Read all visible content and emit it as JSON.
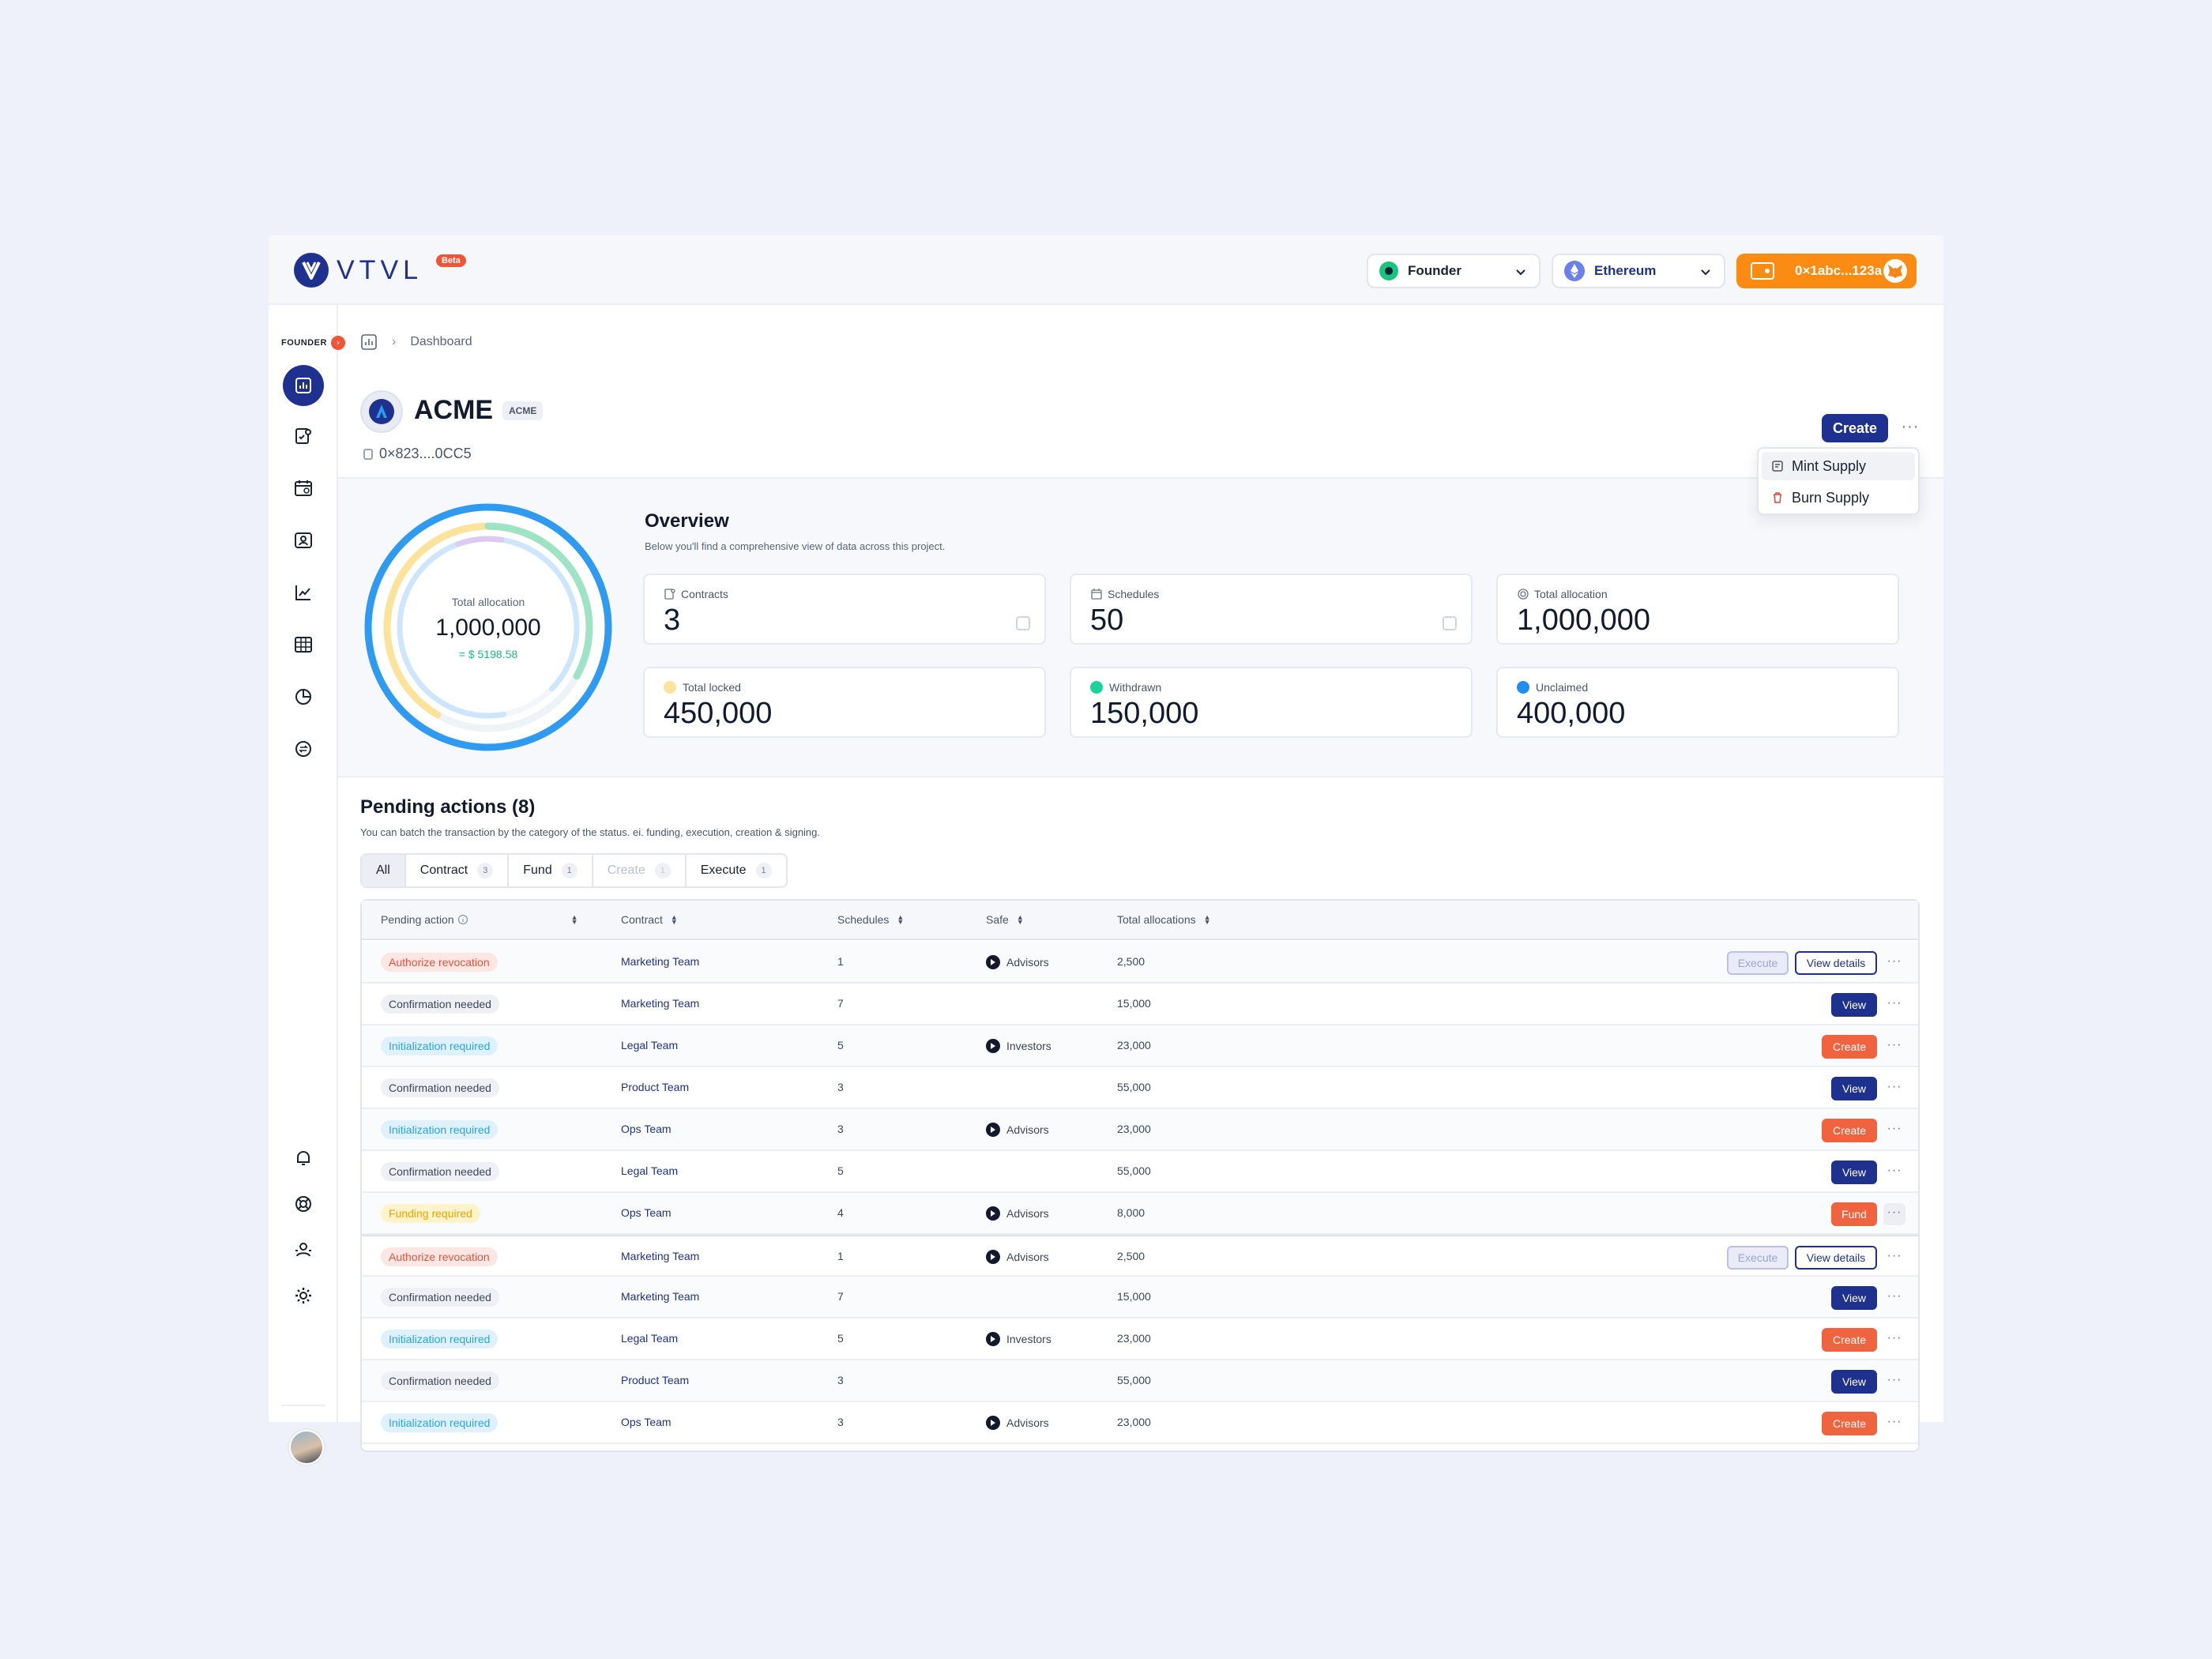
{
  "header": {
    "logo_text": "VTVL",
    "beta_label": "Beta",
    "role": "Founder",
    "network": "Ethereum",
    "wallet": "0×1abc...123a"
  },
  "sidebar": {
    "role_label": "FOUNDER",
    "icons": [
      "dashboard-icon",
      "contracts-icon",
      "schedules-icon",
      "recipients-icon",
      "analytics-icon",
      "table-icon",
      "pie-chart-icon",
      "token-icon"
    ],
    "bottom_icons": [
      "bell-icon",
      "support-icon",
      "team-icon",
      "settings-icon"
    ]
  },
  "breadcrumb": {
    "current": "Dashboard"
  },
  "project": {
    "name": "ACME",
    "tag": "ACME",
    "address": "0×823....0CC5",
    "create_label": "Create",
    "menu": [
      "Mint Supply",
      "Burn Supply"
    ]
  },
  "overview": {
    "title": "Overview",
    "subtitle": "Below you'll find a comprehensive view of data across this project.",
    "donut": {
      "label": "Total allocation",
      "value": "1,000,000",
      "usd": "= $ 5198.58",
      "total": 1000000,
      "locked": 450000,
      "withdrawn": 150000,
      "unclaimed": 400000
    },
    "cards": [
      {
        "label": "Contracts",
        "value": "3"
      },
      {
        "label": "Schedules",
        "value": "50"
      },
      {
        "label": "Total allocation",
        "value": "1,000,000"
      },
      {
        "label": "Total locked",
        "value": "450,000",
        "color": "#fbe39c"
      },
      {
        "label": "Withdrawn",
        "value": "150,000",
        "color": "#19d49a"
      },
      {
        "label": "Unclaimed",
        "value": "400,000",
        "color": "#1f8ef0"
      }
    ]
  },
  "pending": {
    "title": "Pending actions (8)",
    "subtitle": "You can batch the transaction by the category of the status. ei. funding, execution, creation & signing.",
    "tabs": [
      {
        "label": "All",
        "count": ""
      },
      {
        "label": "Contract",
        "count": "3"
      },
      {
        "label": "Fund",
        "count": "1"
      },
      {
        "label": "Create",
        "count": "1"
      },
      {
        "label": "Execute",
        "count": "1"
      }
    ],
    "columns": [
      "Pending action",
      "Contract",
      "Schedules",
      "Safe",
      "Total allocations"
    ],
    "rows": [
      {
        "status": "Authorize revocation",
        "contract": "Marketing Team",
        "schedules": "1",
        "safe": "Advisors",
        "alloc": "2,500",
        "actions": [
          "Execute",
          "View details"
        ]
      },
      {
        "status": "Confirmation needed",
        "contract": "Marketing Team",
        "schedules": "7",
        "safe": "",
        "alloc": "15,000",
        "actions": [
          "View"
        ]
      },
      {
        "status": "Initialization required",
        "contract": "Legal Team",
        "schedules": "5",
        "safe": "Investors",
        "alloc": "23,000",
        "actions": [
          "Create"
        ]
      },
      {
        "status": "Confirmation needed",
        "contract": "Product Team",
        "schedules": "3",
        "safe": "",
        "alloc": "55,000",
        "actions": [
          "View"
        ]
      },
      {
        "status": "Initialization required",
        "contract": "Ops Team",
        "schedules": "3",
        "safe": "Advisors",
        "alloc": "23,000",
        "actions": [
          "Create"
        ]
      },
      {
        "status": "Confirmation needed",
        "contract": "Legal Team",
        "schedules": "5",
        "safe": "",
        "alloc": "55,000",
        "actions": [
          "View"
        ]
      },
      {
        "status": "Funding required",
        "contract": "Ops Team",
        "schedules": "4",
        "safe": "Advisors",
        "alloc": "8,000",
        "actions": [
          "Fund"
        ]
      },
      {
        "status": "Authorize revocation",
        "contract": "Marketing Team",
        "schedules": "1",
        "safe": "Advisors",
        "alloc": "2,500",
        "actions": [
          "Execute",
          "View details"
        ]
      },
      {
        "status": "Confirmation needed",
        "contract": "Marketing Team",
        "schedules": "7",
        "safe": "",
        "alloc": "15,000",
        "actions": [
          "View"
        ]
      },
      {
        "status": "Initialization required",
        "contract": "Legal Team",
        "schedules": "5",
        "safe": "Investors",
        "alloc": "23,000",
        "actions": [
          "Create"
        ]
      },
      {
        "status": "Confirmation needed",
        "contract": "Product Team",
        "schedules": "3",
        "safe": "",
        "alloc": "55,000",
        "actions": [
          "View"
        ]
      },
      {
        "status": "Initialization required",
        "contract": "Ops Team",
        "schedules": "3",
        "safe": "Advisors",
        "alloc": "23,000",
        "actions": [
          "Create"
        ]
      }
    ]
  }
}
